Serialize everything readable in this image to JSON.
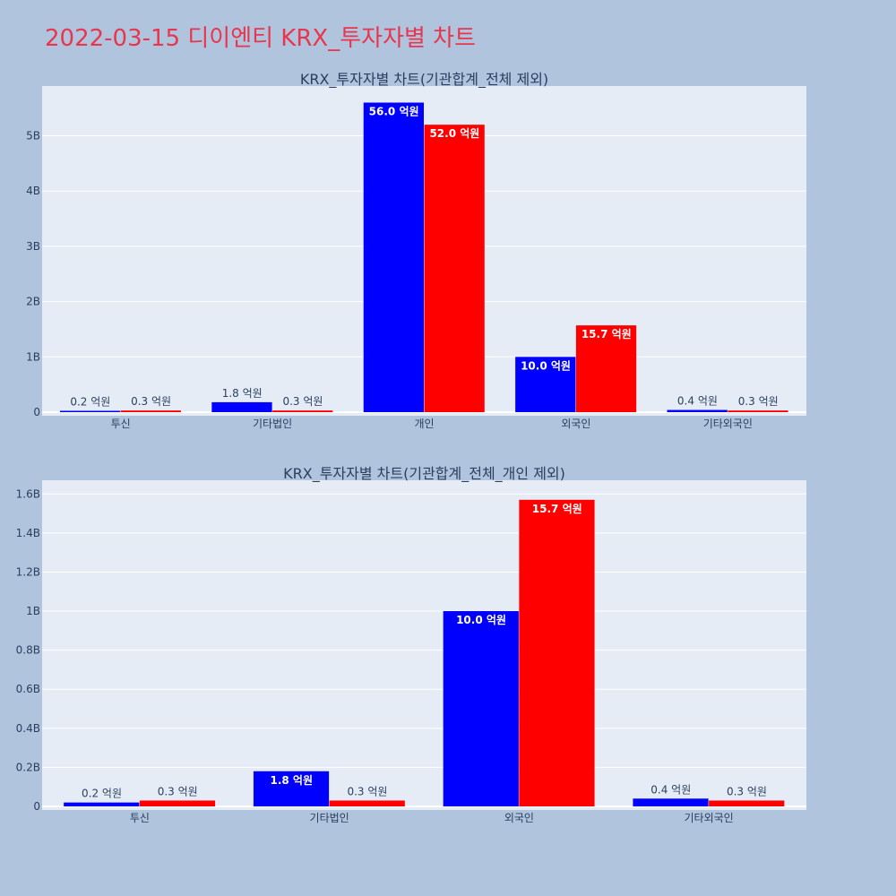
{
  "page_title": "2022-03-15 디이엔티 KRX_투자자별 차트",
  "colors": {
    "buy": "#0000ff",
    "sell": "#ff0000",
    "title": "#e8364e",
    "plot_bg": "#e5ecf6",
    "page_bg": "#b0c4de"
  },
  "chart_data": [
    {
      "type": "bar",
      "title": "KRX_투자자별 차트(기관합계_전체 제외)",
      "categories": [
        "투신",
        "기타법인",
        "개인",
        "외국인",
        "기타외국인"
      ],
      "series": [
        {
          "values": [
            20000000,
            180000000,
            5600000000,
            1000000000,
            40000000
          ],
          "labels": [
            "0.2 억원",
            "1.8 억원",
            "56.0 억원",
            "10.0 억원",
            "0.4 억원"
          ]
        },
        {
          "values": [
            30000000,
            30000000,
            5200000000,
            1570000000,
            30000000
          ],
          "labels": [
            "0.3 억원",
            "0.3 억원",
            "52.0 억원",
            "15.7 억원",
            "0.3 억원"
          ]
        }
      ],
      "ylim": [
        0,
        5900000000
      ],
      "yticks": [
        0,
        1000000000,
        2000000000,
        3000000000,
        4000000000,
        5000000000
      ],
      "yticklabels": [
        "0",
        "1B",
        "2B",
        "3B",
        "4B",
        "5B"
      ],
      "grid": true,
      "xlabel": "",
      "ylabel": ""
    },
    {
      "type": "bar",
      "title": "KRX_투자자별 차트(기관합계_전체_개인 제외)",
      "categories": [
        "투신",
        "기타법인",
        "외국인",
        "기타외국인"
      ],
      "series": [
        {
          "values": [
            20000000,
            180000000,
            1000000000,
            40000000
          ],
          "labels": [
            "0.2 억원",
            "1.8 억원",
            "10.0 억원",
            "0.4 억원"
          ]
        },
        {
          "values": [
            30000000,
            30000000,
            1570000000,
            30000000
          ],
          "labels": [
            "0.3 억원",
            "0.3 억원",
            "15.7 억원",
            "0.3 억원"
          ]
        }
      ],
      "ylim": [
        0,
        1670000000
      ],
      "yticks": [
        0,
        200000000,
        400000000,
        600000000,
        800000000,
        1000000000,
        1200000000,
        1400000000,
        1600000000
      ],
      "yticklabels": [
        "0",
        "0.2B",
        "0.4B",
        "0.6B",
        "0.8B",
        "1B",
        "1.2B",
        "1.4B",
        "1.6B"
      ],
      "grid": true,
      "xlabel": "",
      "ylabel": ""
    }
  ]
}
